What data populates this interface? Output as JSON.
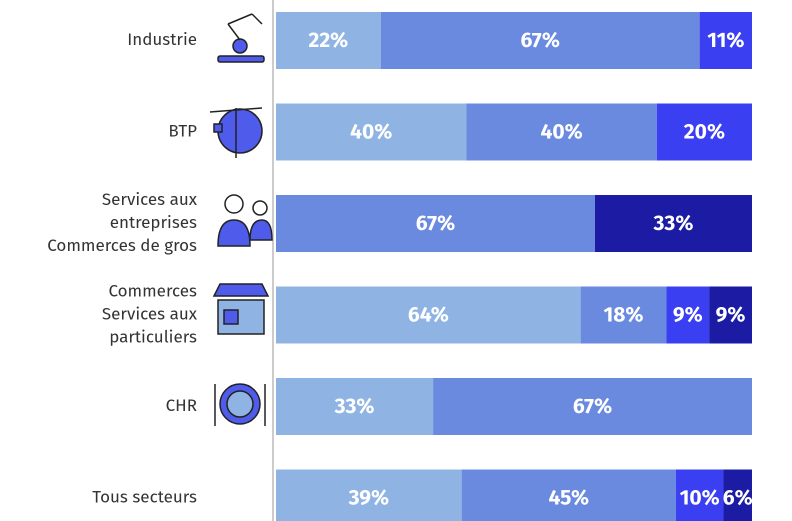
{
  "chart_data": {
    "type": "stacked-bar-horizontal",
    "categories": [
      [
        "Industrie"
      ],
      [
        "BTP"
      ],
      [
        "Services aux",
        "entreprises",
        "Commerces de gros"
      ],
      [
        "Commerces",
        "Services aux",
        "particuliers"
      ],
      [
        "CHR"
      ],
      [
        "Tous secteurs"
      ]
    ],
    "xlim": [
      0,
      100
    ],
    "series": [
      {
        "color": "#8fb4e4",
        "values": [
          22,
          40,
          null,
          64,
          33,
          39
        ],
        "value_labels": [
          "22%",
          "40%",
          null,
          "64%",
          "33%",
          "39%"
        ]
      },
      {
        "color": "#6a8ae0",
        "values": [
          67,
          40,
          67,
          18,
          67,
          45
        ],
        "value_labels": [
          "67%",
          "40%",
          "67%",
          "18%",
          "67%",
          "45%"
        ]
      },
      {
        "color": "#3b3ff2",
        "values": [
          11,
          20,
          null,
          9,
          null,
          10
        ],
        "value_labels": [
          "11%",
          "20%",
          null,
          "9%",
          null,
          "10%"
        ]
      },
      {
        "color": "#1b1ba3",
        "values": [
          null,
          null,
          33,
          9,
          null,
          6
        ],
        "value_labels": [
          null,
          null,
          "33%",
          "9%",
          null,
          "6%"
        ]
      }
    ]
  }
}
